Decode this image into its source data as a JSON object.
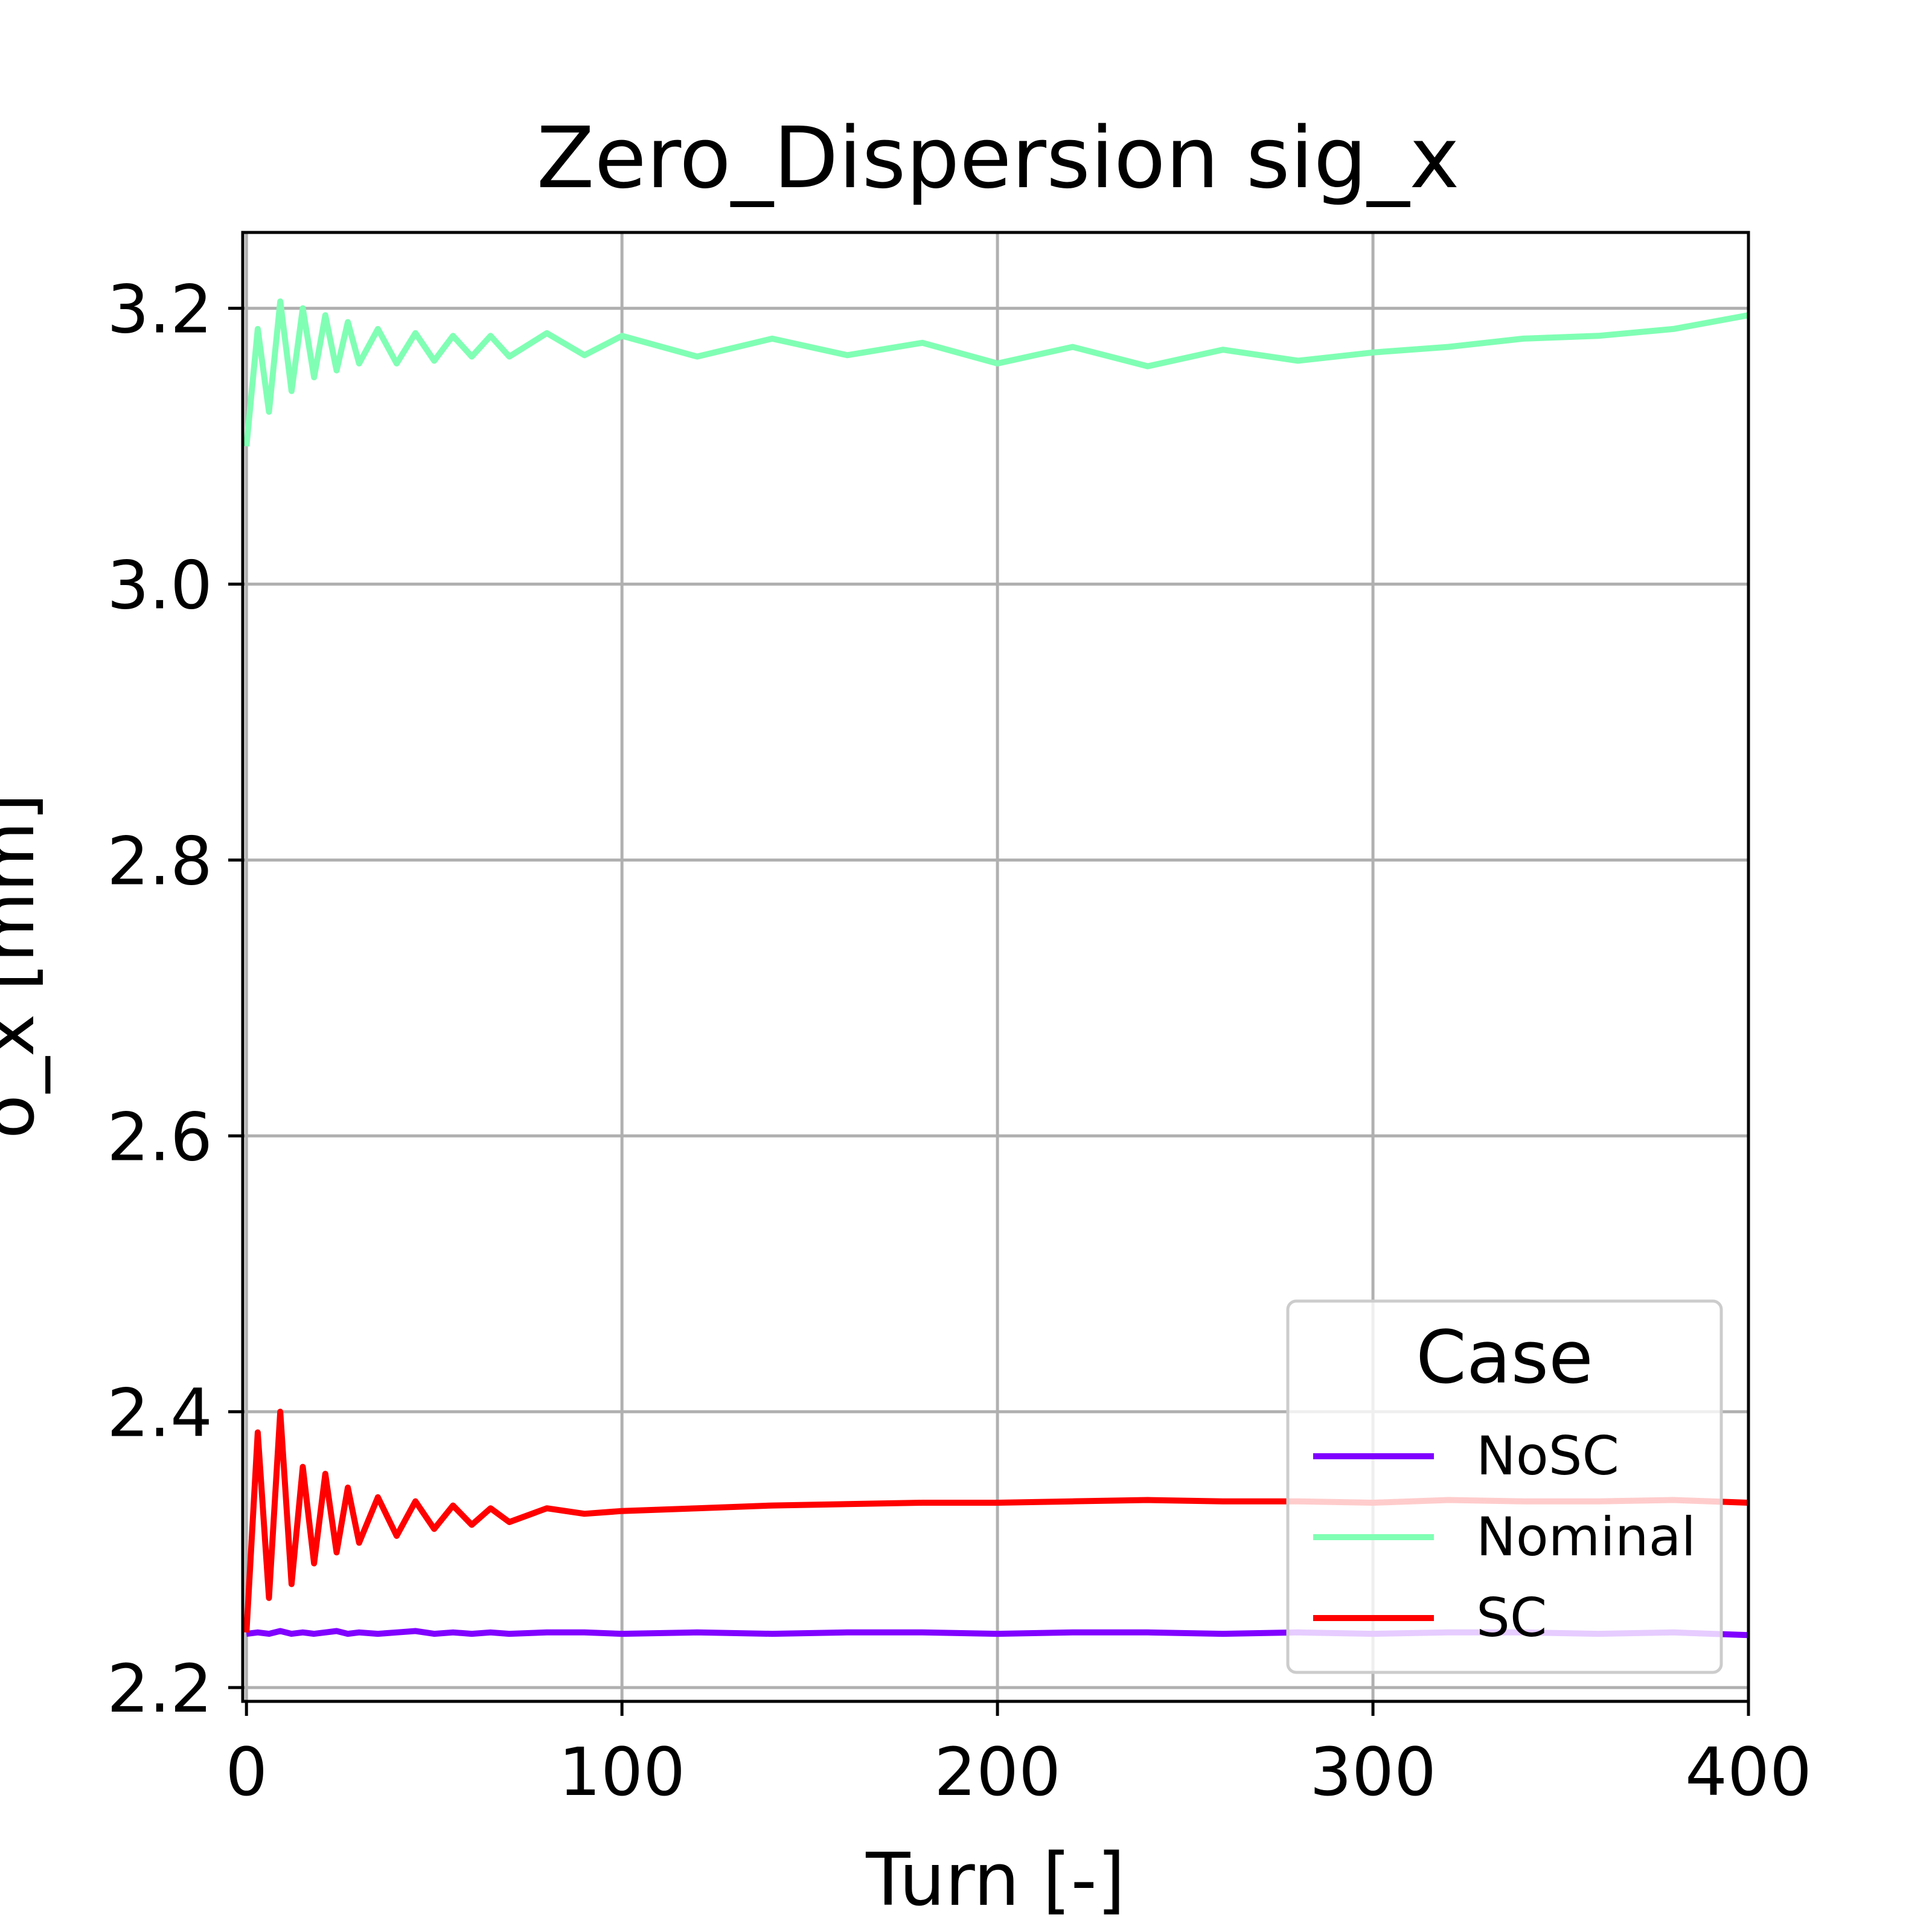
{
  "chart_data": {
    "type": "line",
    "title": "Zero_Dispersion  sig_x",
    "xlabel": "Turn [-]",
    "ylabel": "σ_x [mm]",
    "xlim": [
      -1,
      400
    ],
    "ylim": [
      2.19,
      3.255
    ],
    "xticks": [
      0,
      100,
      200,
      300,
      400
    ],
    "xtick_labels": [
      "0",
      "100",
      "200",
      "300",
      "400"
    ],
    "yticks": [
      2.2,
      2.4,
      2.6,
      2.8,
      3.0,
      3.2
    ],
    "ytick_labels": [
      "2.2",
      "2.4",
      "2.6",
      "2.8",
      "3.0",
      "3.2"
    ],
    "grid": true,
    "legend": {
      "title": "Case",
      "position": "lower right"
    },
    "x": [
      0,
      3,
      6,
      9,
      12,
      15,
      18,
      21,
      24,
      27,
      30,
      35,
      40,
      45,
      50,
      55,
      60,
      65,
      70,
      80,
      90,
      100,
      120,
      140,
      160,
      180,
      200,
      220,
      240,
      260,
      280,
      300,
      320,
      340,
      360,
      380,
      400
    ],
    "series": [
      {
        "name": "NoSC",
        "color": "#8000ff",
        "values": [
          2.239,
          2.24,
          2.239,
          2.241,
          2.239,
          2.24,
          2.239,
          2.24,
          2.241,
          2.239,
          2.24,
          2.239,
          2.24,
          2.241,
          2.239,
          2.24,
          2.239,
          2.24,
          2.239,
          2.24,
          2.24,
          2.239,
          2.24,
          2.239,
          2.24,
          2.24,
          2.239,
          2.24,
          2.24,
          2.239,
          2.24,
          2.239,
          2.24,
          2.24,
          2.239,
          2.24,
          2.238
        ]
      },
      {
        "name": "Nominal",
        "color": "#80ffb4",
        "values": [
          3.1,
          3.185,
          3.125,
          3.205,
          3.14,
          3.2,
          3.15,
          3.195,
          3.155,
          3.19,
          3.16,
          3.185,
          3.16,
          3.182,
          3.162,
          3.18,
          3.165,
          3.18,
          3.165,
          3.182,
          3.166,
          3.18,
          3.165,
          3.178,
          3.166,
          3.175,
          3.16,
          3.172,
          3.158,
          3.17,
          3.162,
          3.168,
          3.172,
          3.178,
          3.18,
          3.185,
          3.195
        ]
      },
      {
        "name": "SC",
        "color": "#ff0000",
        "values": [
          2.24,
          2.385,
          2.265,
          2.4,
          2.275,
          2.36,
          2.29,
          2.355,
          2.298,
          2.345,
          2.305,
          2.338,
          2.31,
          2.335,
          2.315,
          2.332,
          2.318,
          2.33,
          2.32,
          2.33,
          2.326,
          2.328,
          2.33,
          2.332,
          2.333,
          2.334,
          2.334,
          2.335,
          2.336,
          2.335,
          2.335,
          2.334,
          2.336,
          2.335,
          2.335,
          2.336,
          2.334
        ]
      }
    ]
  }
}
